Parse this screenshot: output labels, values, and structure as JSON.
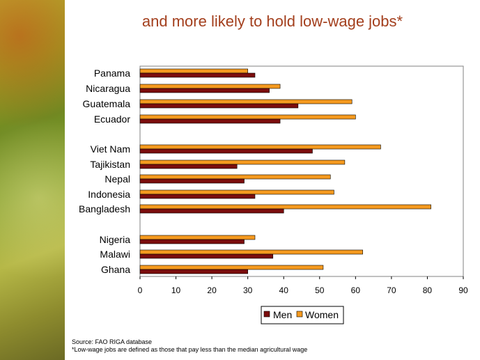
{
  "title": "and more likely to hold low-wage jobs*",
  "source_note": "Source: FAO RIGA database",
  "footnote": "*Low-wage jobs are defined as those that pay less than the median agricultural wage",
  "colors": {
    "men": "#7b0d0d",
    "women": "#f59a1f",
    "title": "#a33f1d"
  },
  "chart_data": {
    "type": "bar",
    "orientation": "horizontal",
    "categories": [
      "Panama",
      "Nicaragua",
      "Guatemala",
      "Ecuador",
      "Viet Nam",
      "Tajikistan",
      "Nepal",
      "Indonesia",
      "Bangladesh",
      "Nigeria",
      "Malawi",
      "Ghana"
    ],
    "series": [
      {
        "name": "Men",
        "values": [
          32,
          36,
          44,
          39,
          48,
          27,
          29,
          32,
          40,
          29,
          37,
          30
        ]
      },
      {
        "name": "Women",
        "values": [
          30,
          39,
          59,
          60,
          67,
          57,
          53,
          54,
          81,
          32,
          62,
          51
        ]
      }
    ],
    "xlim": [
      0,
      90
    ],
    "xticks": [
      "0",
      "10",
      "20",
      "30",
      "40",
      "50",
      "60",
      "70",
      "80",
      "90"
    ],
    "legend_position": "bottom",
    "grid": false
  }
}
